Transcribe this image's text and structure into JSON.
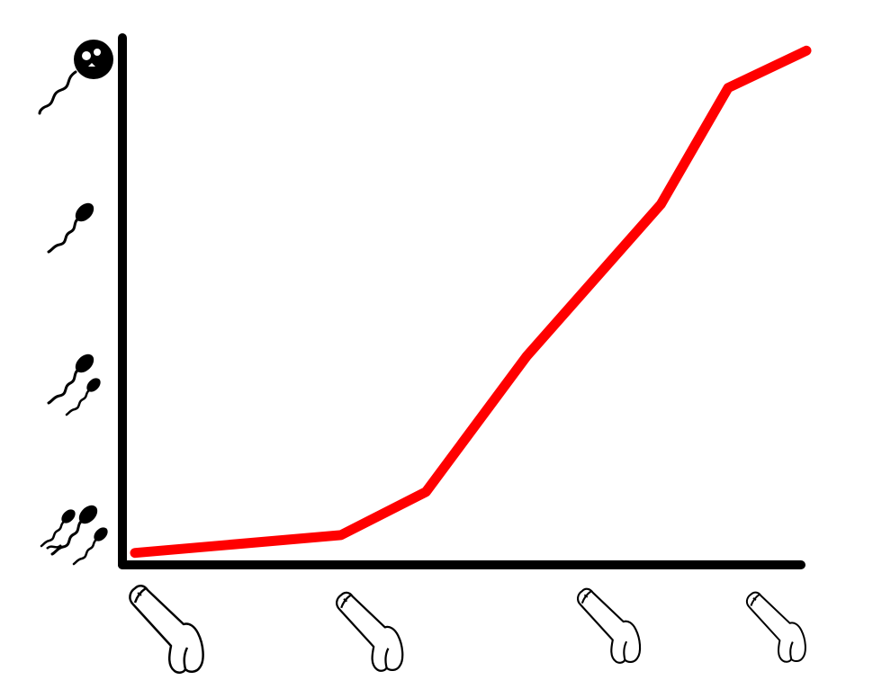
{
  "chart_data": {
    "type": "line",
    "title": "",
    "xlabel": "",
    "ylabel": "",
    "x_categories": [
      "large-penis-icon",
      "medium-penis-icon",
      "small-penis-icon",
      "tiny-penis-icon"
    ],
    "y_categories": [
      "many-sperm-icon",
      "few-sperm-icon",
      "single-sperm-icon",
      "skull-sperm-icon"
    ],
    "line_color": "#ff0000",
    "axis_color": "#000000",
    "series": [
      {
        "x": [
          0.0,
          0.92,
          1.3,
          1.75,
          2.35,
          2.65,
          3.0
        ],
        "y": [
          0.08,
          0.2,
          0.49,
          1.4,
          2.42,
          3.2,
          3.45
        ]
      }
    ],
    "xlim": [
      0,
      3
    ],
    "ylim": [
      0,
      3.5
    ]
  }
}
